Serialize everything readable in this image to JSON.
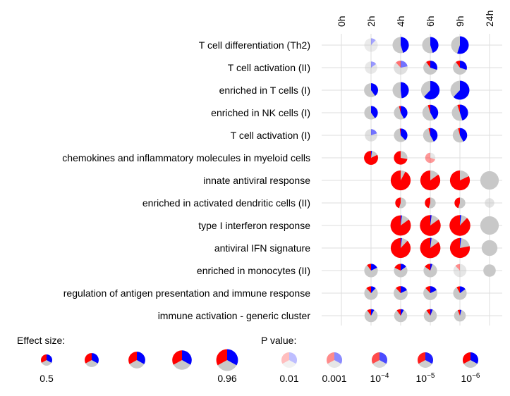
{
  "colors": {
    "red": "#ff0000",
    "blue": "#0000ff",
    "gray": "#c8c8c8",
    "grid": "#dddddd"
  },
  "chart_data": {
    "type": "pie-grid",
    "columns": [
      "0h",
      "2h",
      "4h",
      "6h",
      "9h",
      "24h"
    ],
    "rows": [
      "T cell differentiation (Th2)",
      "T cell activation (II)",
      "enriched in T cells (I)",
      "enriched in NK cells (I)",
      "T cell activation (I)",
      "chemokines and inflammatory molecules in myeloid cells",
      "innate antiviral response",
      "enriched in activated dendritic cells (II)",
      "type I interferon response",
      "antiviral IFN signature",
      "enriched in monocytes (II)",
      "regulation of antigen presentation and immune response",
      "immune activation - generic cluster"
    ],
    "cells": [
      {
        "row": 0,
        "col": 1,
        "size": 0.6,
        "up": 0.0,
        "down": 0.12,
        "alpha": 0.35
      },
      {
        "row": 0,
        "col": 2,
        "size": 0.72,
        "up": 0.0,
        "down": 0.45,
        "alpha": 1
      },
      {
        "row": 0,
        "col": 3,
        "size": 0.72,
        "up": 0.0,
        "down": 0.45,
        "alpha": 1
      },
      {
        "row": 0,
        "col": 4,
        "size": 0.78,
        "up": 0.0,
        "down": 0.55,
        "alpha": 1
      },
      {
        "row": 1,
        "col": 1,
        "size": 0.55,
        "up": 0.0,
        "down": 0.15,
        "alpha": 0.4
      },
      {
        "row": 1,
        "col": 2,
        "size": 0.62,
        "up": 0.12,
        "down": 0.22,
        "alpha": 0.55
      },
      {
        "row": 1,
        "col": 3,
        "size": 0.62,
        "up": 0.1,
        "down": 0.3,
        "alpha": 1
      },
      {
        "row": 1,
        "col": 4,
        "size": 0.62,
        "up": 0.1,
        "down": 0.3,
        "alpha": 1
      },
      {
        "row": 2,
        "col": 1,
        "size": 0.62,
        "up": 0.0,
        "down": 0.4,
        "alpha": 1
      },
      {
        "row": 2,
        "col": 2,
        "size": 0.72,
        "up": 0.0,
        "down": 0.48,
        "alpha": 1
      },
      {
        "row": 2,
        "col": 3,
        "size": 0.82,
        "up": 0.0,
        "down": 0.62,
        "alpha": 1
      },
      {
        "row": 2,
        "col": 4,
        "size": 0.84,
        "up": 0.0,
        "down": 0.62,
        "alpha": 1
      },
      {
        "row": 3,
        "col": 1,
        "size": 0.6,
        "up": 0.0,
        "down": 0.4,
        "alpha": 1
      },
      {
        "row": 3,
        "col": 2,
        "size": 0.6,
        "up": 0.04,
        "down": 0.42,
        "alpha": 1
      },
      {
        "row": 3,
        "col": 3,
        "size": 0.7,
        "up": 0.05,
        "down": 0.42,
        "alpha": 1
      },
      {
        "row": 3,
        "col": 4,
        "size": 0.72,
        "up": 0.05,
        "down": 0.45,
        "alpha": 1
      },
      {
        "row": 4,
        "col": 1,
        "size": 0.55,
        "up": 0.0,
        "down": 0.2,
        "alpha": 0.55
      },
      {
        "row": 4,
        "col": 2,
        "size": 0.6,
        "up": 0.02,
        "down": 0.38,
        "alpha": 1
      },
      {
        "row": 4,
        "col": 3,
        "size": 0.64,
        "up": 0.04,
        "down": 0.42,
        "alpha": 1
      },
      {
        "row": 4,
        "col": 4,
        "size": 0.64,
        "up": 0.04,
        "down": 0.42,
        "alpha": 1
      },
      {
        "row": 5,
        "col": 1,
        "size": 0.62,
        "up": 0.82,
        "down": 0.02,
        "alpha": 1
      },
      {
        "row": 5,
        "col": 2,
        "size": 0.6,
        "up": 0.72,
        "down": 0.0,
        "alpha": 1
      },
      {
        "row": 5,
        "col": 3,
        "size": 0.45,
        "up": 0.7,
        "down": 0.0,
        "alpha": 0.4
      },
      {
        "row": 6,
        "col": 2,
        "size": 0.88,
        "up": 0.92,
        "down": 0.0,
        "alpha": 1
      },
      {
        "row": 6,
        "col": 3,
        "size": 0.88,
        "up": 0.85,
        "down": 0.0,
        "alpha": 1
      },
      {
        "row": 6,
        "col": 4,
        "size": 0.88,
        "up": 0.82,
        "down": 0.0,
        "alpha": 1
      },
      {
        "row": 6,
        "col": 5,
        "size": 0.82,
        "up": 0.0,
        "down": 0.0,
        "alpha": 1
      },
      {
        "row": 7,
        "col": 2,
        "size": 0.48,
        "up": 0.45,
        "down": 0.0,
        "alpha": 1
      },
      {
        "row": 7,
        "col": 3,
        "size": 0.48,
        "up": 0.45,
        "down": 0.0,
        "alpha": 1
      },
      {
        "row": 7,
        "col": 4,
        "size": 0.48,
        "up": 0.45,
        "down": 0.0,
        "alpha": 1
      },
      {
        "row": 7,
        "col": 5,
        "size": 0.42,
        "up": 0.0,
        "down": 0.0,
        "alpha": 0.5
      },
      {
        "row": 8,
        "col": 2,
        "size": 0.9,
        "up": 0.85,
        "down": 0.02,
        "alpha": 1
      },
      {
        "row": 8,
        "col": 3,
        "size": 0.92,
        "up": 0.85,
        "down": 0.02,
        "alpha": 1
      },
      {
        "row": 8,
        "col": 4,
        "size": 0.92,
        "up": 0.88,
        "down": 0.02,
        "alpha": 1
      },
      {
        "row": 8,
        "col": 5,
        "size": 0.82,
        "up": 0.0,
        "down": 0.0,
        "alpha": 1
      },
      {
        "row": 9,
        "col": 2,
        "size": 0.88,
        "up": 0.88,
        "down": 0.02,
        "alpha": 1
      },
      {
        "row": 9,
        "col": 3,
        "size": 0.9,
        "up": 0.85,
        "down": 0.02,
        "alpha": 1
      },
      {
        "row": 9,
        "col": 4,
        "size": 0.88,
        "up": 0.78,
        "down": 0.02,
        "alpha": 1
      },
      {
        "row": 9,
        "col": 5,
        "size": 0.7,
        "up": 0.0,
        "down": 0.0,
        "alpha": 1
      },
      {
        "row": 10,
        "col": 1,
        "size": 0.6,
        "up": 0.1,
        "down": 0.18,
        "alpha": 1
      },
      {
        "row": 10,
        "col": 2,
        "size": 0.6,
        "up": 0.18,
        "down": 0.15,
        "alpha": 1
      },
      {
        "row": 10,
        "col": 3,
        "size": 0.6,
        "up": 0.15,
        "down": 0.05,
        "alpha": 1
      },
      {
        "row": 10,
        "col": 4,
        "size": 0.58,
        "up": 0.12,
        "down": 0.0,
        "alpha": 0.45
      },
      {
        "row": 10,
        "col": 5,
        "size": 0.55,
        "up": 0.0,
        "down": 0.0,
        "alpha": 1
      },
      {
        "row": 11,
        "col": 1,
        "size": 0.6,
        "up": 0.12,
        "down": 0.12,
        "alpha": 1
      },
      {
        "row": 11,
        "col": 2,
        "size": 0.62,
        "up": 0.12,
        "down": 0.18,
        "alpha": 1
      },
      {
        "row": 11,
        "col": 3,
        "size": 0.62,
        "up": 0.12,
        "down": 0.18,
        "alpha": 1
      },
      {
        "row": 11,
        "col": 4,
        "size": 0.6,
        "up": 0.08,
        "down": 0.15,
        "alpha": 1
      },
      {
        "row": 12,
        "col": 1,
        "size": 0.58,
        "up": 0.1,
        "down": 0.08,
        "alpha": 1
      },
      {
        "row": 12,
        "col": 2,
        "size": 0.58,
        "up": 0.1,
        "down": 0.08,
        "alpha": 1
      },
      {
        "row": 12,
        "col": 3,
        "size": 0.58,
        "up": 0.1,
        "down": 0.06,
        "alpha": 1
      },
      {
        "row": 12,
        "col": 4,
        "size": 0.52,
        "up": 0.06,
        "down": 0.04,
        "alpha": 1
      }
    ],
    "legend_effect": {
      "title": "Effect size:",
      "items": [
        {
          "size": 0.5,
          "label": "0.5"
        },
        {
          "size": 0.62,
          "label": ""
        },
        {
          "size": 0.74,
          "label": ""
        },
        {
          "size": 0.86,
          "label": ""
        },
        {
          "size": 0.96,
          "label": "0.96"
        }
      ]
    },
    "legend_pvalue": {
      "title": "P value:",
      "items": [
        {
          "alpha": 0.25,
          "label_base": "0.01",
          "label_exp": ""
        },
        {
          "alpha": 0.45,
          "label_base": "0.001",
          "label_exp": ""
        },
        {
          "alpha": 0.7,
          "label_base": "10",
          "label_exp": "−4"
        },
        {
          "alpha": 0.88,
          "label_base": "10",
          "label_exp": "−5"
        },
        {
          "alpha": 1.0,
          "label_base": "10",
          "label_exp": "−6"
        }
      ]
    }
  }
}
